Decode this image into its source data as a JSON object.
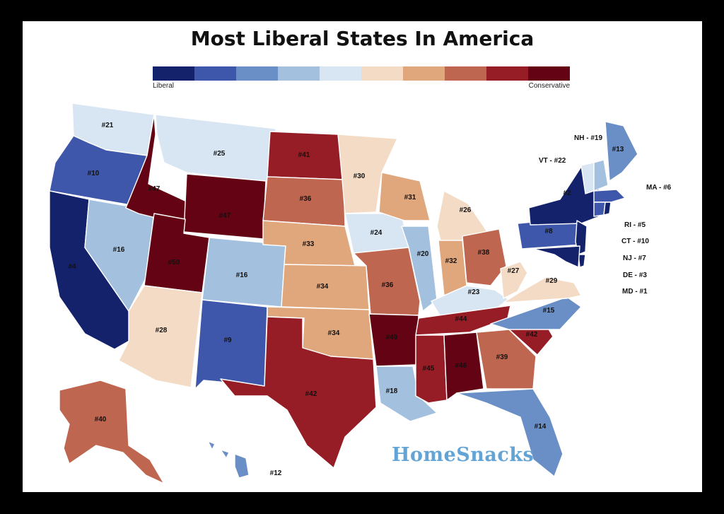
{
  "title": "Most Liberal States In America",
  "legend": {
    "colors": [
      "#13226b",
      "#3f57ab",
      "#6a8fc6",
      "#a3c0de",
      "#d8e5f2",
      "#f3dbc6",
      "#e0a67c",
      "#bf6650",
      "#961c26",
      "#630313"
    ],
    "low_label": "Liberal",
    "high_label": "Conservative"
  },
  "states": [
    {
      "abbr": "WA",
      "rank": "#21",
      "color": "#d8e5f2"
    },
    {
      "abbr": "OR",
      "rank": "#10",
      "color": "#3f57ab"
    },
    {
      "abbr": "CA",
      "rank": "#4",
      "color": "#13226b"
    },
    {
      "abbr": "NV",
      "rank": "#16",
      "color": "#a3c0de"
    },
    {
      "abbr": "ID",
      "rank": "#47",
      "color": "#630313"
    },
    {
      "abbr": "MT",
      "rank": "#25",
      "color": "#d8e5f2"
    },
    {
      "abbr": "WY",
      "rank": "#47",
      "color": "#630313"
    },
    {
      "abbr": "UT",
      "rank": "#50",
      "color": "#630313"
    },
    {
      "abbr": "AZ",
      "rank": "#28",
      "color": "#f3dbc6"
    },
    {
      "abbr": "CO",
      "rank": "#16",
      "color": "#a3c0de"
    },
    {
      "abbr": "NM",
      "rank": "#9",
      "color": "#3f57ab"
    },
    {
      "abbr": "ND",
      "rank": "#41",
      "color": "#961c26"
    },
    {
      "abbr": "SD",
      "rank": "#36",
      "color": "#bf6650"
    },
    {
      "abbr": "NE",
      "rank": "#33",
      "color": "#e0a67c"
    },
    {
      "abbr": "KS",
      "rank": "#34",
      "color": "#e0a67c"
    },
    {
      "abbr": "OK",
      "rank": "#34",
      "color": "#e0a67c"
    },
    {
      "abbr": "TX",
      "rank": "#42",
      "color": "#961c26"
    },
    {
      "abbr": "MN",
      "rank": "#30",
      "color": "#f3dbc6"
    },
    {
      "abbr": "IA",
      "rank": "#24",
      "color": "#d8e5f2"
    },
    {
      "abbr": "MO",
      "rank": "#36",
      "color": "#bf6650"
    },
    {
      "abbr": "AR",
      "rank": "#49",
      "color": "#630313"
    },
    {
      "abbr": "LA",
      "rank": "#18",
      "color": "#a3c0de"
    },
    {
      "abbr": "WI",
      "rank": "#31",
      "color": "#e0a67c"
    },
    {
      "abbr": "IL",
      "rank": "#20",
      "color": "#a3c0de"
    },
    {
      "abbr": "MI",
      "rank": "#26",
      "color": "#f3dbc6"
    },
    {
      "abbr": "IN",
      "rank": "#32",
      "color": "#e0a67c"
    },
    {
      "abbr": "OH",
      "rank": "#38",
      "color": "#bf6650"
    },
    {
      "abbr": "KY",
      "rank": "#23",
      "color": "#d8e5f2"
    },
    {
      "abbr": "TN",
      "rank": "#44",
      "color": "#961c26"
    },
    {
      "abbr": "MS",
      "rank": "#45",
      "color": "#961c26"
    },
    {
      "abbr": "AL",
      "rank": "#46",
      "color": "#630313"
    },
    {
      "abbr": "GA",
      "rank": "#39",
      "color": "#bf6650"
    },
    {
      "abbr": "FL",
      "rank": "#14",
      "color": "#6a8fc6"
    },
    {
      "abbr": "SC",
      "rank": "#42",
      "color": "#961c26"
    },
    {
      "abbr": "NC",
      "rank": "#15",
      "color": "#6a8fc6"
    },
    {
      "abbr": "VA",
      "rank": "#29",
      "color": "#f3dbc6"
    },
    {
      "abbr": "WV",
      "rank": "#27",
      "color": "#f3dbc6"
    },
    {
      "abbr": "PA",
      "rank": "#8",
      "color": "#3f57ab"
    },
    {
      "abbr": "NY",
      "rank": "#2",
      "color": "#13226b"
    },
    {
      "abbr": "ME",
      "rank": "#13",
      "color": "#6a8fc6"
    },
    {
      "abbr": "AK",
      "rank": "#40",
      "color": "#bf6650"
    },
    {
      "abbr": "HI",
      "rank": "#12",
      "color": "#6a8fc6"
    },
    {
      "abbr": "VT",
      "rank": "",
      "color": "#d8e5f2"
    },
    {
      "abbr": "NH",
      "rank": "",
      "color": "#a3c0de"
    },
    {
      "abbr": "MA",
      "rank": "",
      "color": "#3f57ab"
    },
    {
      "abbr": "CT",
      "rank": "",
      "color": "#3f57ab"
    },
    {
      "abbr": "RI",
      "rank": "",
      "color": "#13226b"
    },
    {
      "abbr": "NJ",
      "rank": "",
      "color": "#13226b"
    },
    {
      "abbr": "DE",
      "rank": "",
      "color": "#13226b"
    },
    {
      "abbr": "MD",
      "rank": "",
      "color": "#13226b"
    }
  ],
  "callouts": {
    "nh": "NH - #19",
    "vt": "VT - #22",
    "ma": "MA - #6",
    "ri": "RI - #5",
    "ct": "CT - #10",
    "nj": "NJ - #7",
    "de": "DE - #3",
    "md": "MD - #1"
  },
  "brand": {
    "part1": "Home",
    "part2": "Snacks"
  }
}
